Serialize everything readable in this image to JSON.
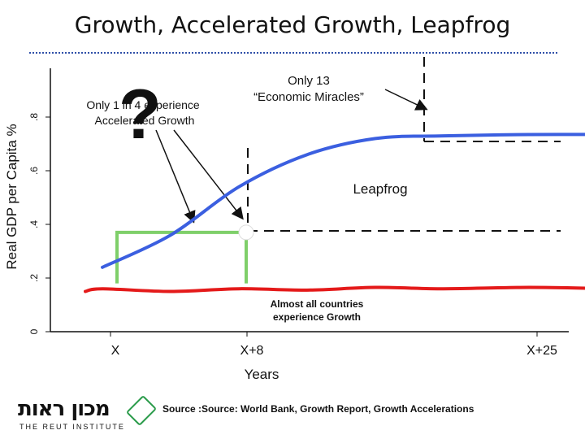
{
  "title": "Growth, Accelerated Growth, Leapfrog",
  "footer": {
    "source": "Source :Source: World Bank, Growth Report, Growth Accelerations",
    "logo_text_he": "מכון ראות",
    "logo_text_en": "THE REUT INSTITUTE"
  },
  "colors": {
    "accelerated": "#3b5fe0",
    "baseline": "#e41a1a",
    "box": "#7fcf6a",
    "title_rule": "#2f4fa8"
  },
  "chart_data": {
    "type": "line",
    "xlabel": "Years",
    "ylabel": "Real GDP per Capita %",
    "x_ticks": [
      "X",
      "X+8",
      "X+25"
    ],
    "y_ticks": [
      "0",
      ".2",
      ".4",
      ".6",
      ".8"
    ],
    "series": [
      {
        "id": "accelerated",
        "x": [
          0,
          4,
          8,
          12,
          16,
          20,
          25,
          30
        ],
        "y": [
          0.24,
          0.36,
          0.54,
          0.66,
          0.72,
          0.73,
          0.735,
          0.735
        ]
      },
      {
        "id": "baseline",
        "x": [
          -1,
          0,
          4,
          8,
          12,
          16,
          20,
          25,
          30
        ],
        "y": [
          0.15,
          0.16,
          0.15,
          0.16,
          0.155,
          0.165,
          0.16,
          0.165,
          0.16
        ]
      }
    ],
    "annotations": {
      "accelerated": "Only 1 in 4 experience Accelerated Growth",
      "miracles_line1": "Only 13",
      "miracles_line2": "“Economic Miracles”",
      "leapfrog": "Leapfrog",
      "growth_line1": "Almost all countries",
      "growth_line2": "experience Growth",
      "question": "?"
    }
  }
}
